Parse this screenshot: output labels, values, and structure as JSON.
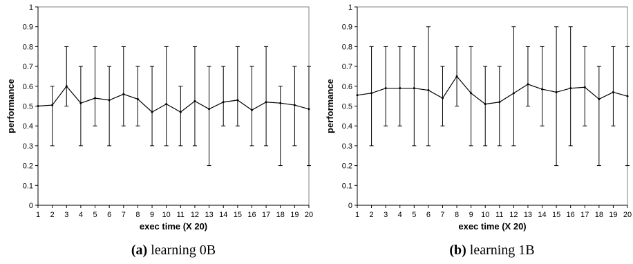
{
  "chart_data": [
    {
      "type": "line",
      "caption_letter": "(a)",
      "caption_text": " learning 0B",
      "xlabel": "exec time (X 20)",
      "ylabel": "performance",
      "x": [
        1,
        2,
        3,
        4,
        5,
        6,
        7,
        8,
        9,
        10,
        11,
        12,
        13,
        14,
        15,
        16,
        17,
        18,
        19,
        20
      ],
      "y_ticks": [
        "0",
        "0.1",
        "0.2",
        "0.3",
        "0.4",
        "0.5",
        "0.6",
        "0.7",
        "0.8",
        "0.9",
        "1"
      ],
      "xlim": [
        1,
        20
      ],
      "ylim": [
        0,
        1
      ],
      "grid": false,
      "series": [
        {
          "values": [
            0.5,
            0.505,
            0.6,
            0.515,
            0.54,
            0.53,
            0.56,
            0.535,
            0.47,
            0.51,
            0.47,
            0.525,
            0.485,
            0.52,
            0.53,
            0.48,
            0.52,
            0.515,
            0.505,
            0.485
          ],
          "err_low": [
            0.5,
            0.3,
            0.5,
            0.3,
            0.4,
            0.3,
            0.4,
            0.4,
            0.3,
            0.3,
            0.3,
            0.3,
            0.2,
            0.4,
            0.4,
            0.3,
            0.3,
            0.2,
            0.3,
            0.2
          ],
          "err_high": [
            0.5,
            0.6,
            0.8,
            0.7,
            0.8,
            0.7,
            0.8,
            0.7,
            0.7,
            0.8,
            0.6,
            0.8,
            0.7,
            0.7,
            0.8,
            0.7,
            0.8,
            0.6,
            0.7,
            0.7
          ]
        }
      ]
    },
    {
      "type": "line",
      "caption_letter": "(b)",
      "caption_text": " learning 1B",
      "xlabel": "exec time (X 20)",
      "ylabel": "performance",
      "x": [
        1,
        2,
        3,
        4,
        5,
        6,
        7,
        8,
        9,
        10,
        11,
        12,
        13,
        14,
        15,
        16,
        17,
        18,
        19,
        20
      ],
      "y_ticks": [
        "0",
        "0.1",
        "0.2",
        "0.3",
        "0.4",
        "0.5",
        "0.6",
        "0.7",
        "0.8",
        "0.9",
        "1"
      ],
      "xlim": [
        1,
        20
      ],
      "ylim": [
        0,
        1
      ],
      "grid": false,
      "series": [
        {
          "values": [
            0.555,
            0.565,
            0.59,
            0.59,
            0.59,
            0.58,
            0.54,
            0.65,
            0.565,
            0.51,
            0.52,
            0.565,
            0.61,
            0.585,
            0.57,
            0.59,
            0.595,
            0.535,
            0.57,
            0.55
          ],
          "err_low": [
            0.555,
            0.3,
            0.4,
            0.4,
            0.3,
            0.3,
            0.4,
            0.5,
            0.3,
            0.3,
            0.3,
            0.3,
            0.5,
            0.4,
            0.2,
            0.3,
            0.4,
            0.2,
            0.4,
            0.2
          ],
          "err_high": [
            0.555,
            0.8,
            0.8,
            0.8,
            0.8,
            0.9,
            0.7,
            0.8,
            0.8,
            0.7,
            0.7,
            0.9,
            0.8,
            0.8,
            0.9,
            0.9,
            0.8,
            0.7,
            0.8,
            0.8
          ]
        }
      ]
    }
  ]
}
